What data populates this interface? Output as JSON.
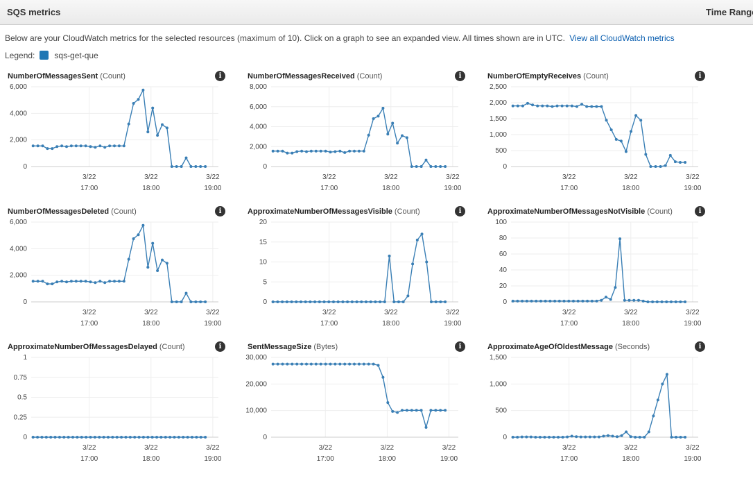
{
  "header": {
    "title": "SQS metrics",
    "time_range_label": "Time Range"
  },
  "intro": {
    "text": "Below are your CloudWatch metrics for the selected resources (maximum of 10). Click on a graph to see an expanded view. All times shown are in UTC.",
    "link": "View all CloudWatch metrics"
  },
  "legend": {
    "label": "Legend:",
    "series": "sqs-get-que",
    "color": "#1f77b4"
  },
  "info_icon": "info-icon",
  "line_color": "#3a7fb5",
  "charts": [
    {
      "metric": "NumberOfMessagesSent",
      "unit": "(Count)",
      "chart_data": {
        "type": "line",
        "series_name": "sqs-get-que",
        "ylim": [
          0,
          6000
        ],
        "yticks": [
          "6,000",
          "4,000",
          "2,000",
          "0"
        ],
        "ytick_values": [
          6000,
          4000,
          2000,
          0
        ],
        "xticks": [
          [
            "3/22",
            "17:00"
          ],
          [
            "3/22",
            "18:00"
          ],
          [
            "3/22",
            "19:00"
          ]
        ],
        "xtick_fractions": [
          0.31,
          0.64,
          0.97
        ],
        "xrange": [
          0,
          1
        ],
        "values": [
          1550,
          1550,
          1550,
          1350,
          1350,
          1500,
          1550,
          1500,
          1550,
          1550,
          1550,
          1550,
          1500,
          1450,
          1550,
          1450,
          1550,
          1550,
          1550,
          1550,
          3200,
          4750,
          5050,
          5750,
          2600,
          4400,
          2350,
          3150,
          2900,
          0,
          0,
          0,
          650,
          0,
          0,
          0,
          0
        ]
      }
    },
    {
      "metric": "NumberOfMessagesReceived",
      "unit": "(Count)",
      "chart_data": {
        "type": "line",
        "series_name": "sqs-get-que",
        "ylim": [
          0,
          8000
        ],
        "yticks": [
          "8,000",
          "6,000",
          "4,000",
          "2,000",
          "0"
        ],
        "ytick_values": [
          8000,
          6000,
          4000,
          2000,
          0
        ],
        "xticks": [
          [
            "3/22",
            "17:00"
          ],
          [
            "3/22",
            "18:00"
          ],
          [
            "3/22",
            "19:00"
          ]
        ],
        "xtick_fractions": [
          0.31,
          0.64,
          0.97
        ],
        "xrange": [
          0,
          1
        ],
        "values": [
          1550,
          1550,
          1550,
          1350,
          1350,
          1500,
          1550,
          1500,
          1550,
          1550,
          1550,
          1550,
          1450,
          1500,
          1550,
          1400,
          1550,
          1550,
          1550,
          1550,
          3150,
          4800,
          5050,
          5850,
          3250,
          4350,
          2350,
          3100,
          2900,
          0,
          0,
          0,
          650,
          0,
          0,
          0,
          0
        ]
      }
    },
    {
      "metric": "NumberOfEmptyReceives",
      "unit": "(Count)",
      "chart_data": {
        "type": "line",
        "series_name": "sqs-get-que",
        "ylim": [
          0,
          2500
        ],
        "yticks": [
          "2,500",
          "2,000",
          "1,500",
          "1,000",
          "500",
          "0"
        ],
        "ytick_values": [
          2500,
          2000,
          1500,
          1000,
          500,
          0
        ],
        "xticks": [
          [
            "3/22",
            "17:00"
          ],
          [
            "3/22",
            "18:00"
          ],
          [
            "3/22",
            "19:00"
          ]
        ],
        "xtick_fractions": [
          0.31,
          0.64,
          0.97
        ],
        "xrange": [
          0,
          1
        ],
        "values": [
          1900,
          1900,
          1900,
          1980,
          1930,
          1900,
          1900,
          1900,
          1880,
          1900,
          1900,
          1900,
          1900,
          1880,
          1950,
          1880,
          1880,
          1880,
          1880,
          1450,
          1150,
          850,
          800,
          470,
          1100,
          1600,
          1450,
          380,
          0,
          0,
          0,
          30,
          350,
          150,
          130,
          130
        ]
      }
    },
    {
      "metric": "NumberOfMessagesDeleted",
      "unit": "(Count)",
      "chart_data": {
        "type": "line",
        "series_name": "sqs-get-que",
        "ylim": [
          0,
          6000
        ],
        "yticks": [
          "6,000",
          "4,000",
          "2,000",
          "0"
        ],
        "ytick_values": [
          6000,
          4000,
          2000,
          0
        ],
        "xticks": [
          [
            "3/22",
            "17:00"
          ],
          [
            "3/22",
            "18:00"
          ],
          [
            "3/22",
            "19:00"
          ]
        ],
        "xtick_fractions": [
          0.31,
          0.64,
          0.97
        ],
        "xrange": [
          0,
          1
        ],
        "values": [
          1550,
          1550,
          1550,
          1350,
          1350,
          1500,
          1550,
          1500,
          1550,
          1550,
          1550,
          1550,
          1500,
          1450,
          1550,
          1450,
          1550,
          1550,
          1550,
          1550,
          3200,
          4750,
          5050,
          5750,
          2600,
          4400,
          2350,
          3150,
          2900,
          0,
          0,
          0,
          650,
          0,
          0,
          0,
          0
        ]
      }
    },
    {
      "metric": "ApproximateNumberOfMessagesVisible",
      "unit": "(Count)",
      "chart_data": {
        "type": "line",
        "series_name": "sqs-get-que",
        "ylim": [
          0,
          20
        ],
        "yticks": [
          "20",
          "15",
          "10",
          "5",
          "0"
        ],
        "ytick_values": [
          20,
          15,
          10,
          5,
          0
        ],
        "xticks": [
          [
            "3/22",
            "17:00"
          ],
          [
            "3/22",
            "18:00"
          ],
          [
            "3/22",
            "19:00"
          ]
        ],
        "xtick_fractions": [
          0.31,
          0.64,
          0.97
        ],
        "xrange": [
          0,
          1
        ],
        "values": [
          0,
          0,
          0,
          0,
          0,
          0,
          0,
          0,
          0,
          0,
          0,
          0,
          0,
          0,
          0,
          0,
          0,
          0,
          0,
          0,
          0,
          0,
          0,
          0,
          0,
          11.5,
          0,
          0,
          0,
          1.5,
          9.5,
          15.5,
          17,
          10,
          0,
          0,
          0,
          0
        ]
      }
    },
    {
      "metric": "ApproximateNumberOfMessagesNotVisible",
      "unit": "(Count)",
      "chart_data": {
        "type": "line",
        "series_name": "sqs-get-que",
        "ylim": [
          0,
          100
        ],
        "yticks": [
          "100",
          "80",
          "60",
          "40",
          "20",
          "0"
        ],
        "ytick_values": [
          100,
          80,
          60,
          40,
          20,
          0
        ],
        "xticks": [
          [
            "3/22",
            "17:00"
          ],
          [
            "3/22",
            "18:00"
          ],
          [
            "3/22",
            "19:00"
          ]
        ],
        "xtick_fractions": [
          0.31,
          0.64,
          0.97
        ],
        "xrange": [
          0,
          1
        ],
        "values": [
          1,
          1,
          1,
          1,
          1,
          1,
          1,
          1,
          1,
          1,
          1,
          1,
          1,
          1,
          1,
          1,
          1,
          1,
          1,
          2,
          6,
          3,
          18,
          79,
          2,
          2,
          2,
          2,
          1,
          0,
          0,
          0,
          0,
          0,
          0,
          0,
          0,
          0
        ]
      }
    },
    {
      "metric": "ApproximateNumberOfMessagesDelayed",
      "unit": "(Count)",
      "chart_data": {
        "type": "line",
        "series_name": "sqs-get-que",
        "ylim": [
          0,
          1
        ],
        "yticks": [
          "1",
          "0.75",
          "0.5",
          "0.25",
          "0"
        ],
        "ytick_values": [
          1,
          0.75,
          0.5,
          0.25,
          0
        ],
        "xticks": [
          [
            "3/22",
            "17:00"
          ],
          [
            "3/22",
            "18:00"
          ],
          [
            "3/22",
            "19:00"
          ]
        ],
        "xtick_fractions": [
          0.31,
          0.64,
          0.97
        ],
        "xrange": [
          0,
          1
        ],
        "values": [
          0,
          0,
          0,
          0,
          0,
          0,
          0,
          0,
          0,
          0,
          0,
          0,
          0,
          0,
          0,
          0,
          0,
          0,
          0,
          0,
          0,
          0,
          0,
          0,
          0,
          0,
          0,
          0,
          0,
          0,
          0,
          0,
          0,
          0,
          0,
          0,
          0,
          0,
          0,
          0
        ]
      }
    },
    {
      "metric": "SentMessageSize",
      "unit": "(Bytes)",
      "chart_data": {
        "type": "line",
        "series_name": "sqs-get-que",
        "ylim": [
          0,
          30000
        ],
        "yticks": [
          "30,000",
          "20,000",
          "10,000",
          "0"
        ],
        "ytick_values": [
          30000,
          20000,
          10000,
          0
        ],
        "xticks": [
          [
            "3/22",
            "17:00"
          ],
          [
            "3/22",
            "18:00"
          ],
          [
            "3/22",
            "19:00"
          ]
        ],
        "xtick_fractions": [
          0.29,
          0.62,
          0.95
        ],
        "xrange": [
          0,
          1
        ],
        "values": [
          27500,
          27500,
          27500,
          27500,
          27500,
          27500,
          27500,
          27500,
          27500,
          27500,
          27500,
          27500,
          27500,
          27500,
          27500,
          27500,
          27500,
          27500,
          27500,
          27500,
          27500,
          27500,
          27000,
          22500,
          13000,
          9700,
          9300,
          10100,
          10100,
          10100,
          10100,
          10100,
          3700,
          10100,
          10100,
          10100,
          10100
        ]
      }
    },
    {
      "metric": "ApproximateAgeOfOldestMessage",
      "unit": "(Seconds)",
      "chart_data": {
        "type": "line",
        "series_name": "sqs-get-que",
        "ylim": [
          0,
          1500
        ],
        "yticks": [
          "1,500",
          "1,000",
          "500",
          "0"
        ],
        "ytick_values": [
          1500,
          1000,
          500,
          0
        ],
        "xticks": [
          [
            "3/22",
            "17:00"
          ],
          [
            "3/22",
            "18:00"
          ],
          [
            "3/22",
            "19:00"
          ]
        ],
        "xtick_fractions": [
          0.31,
          0.64,
          0.97
        ],
        "xrange": [
          0,
          1
        ],
        "values": [
          0,
          0,
          5,
          5,
          5,
          0,
          0,
          0,
          0,
          0,
          0,
          0,
          5,
          20,
          10,
          5,
          5,
          5,
          5,
          5,
          20,
          30,
          20,
          10,
          30,
          100,
          10,
          0,
          0,
          0,
          100,
          400,
          700,
          1000,
          1180,
          0,
          0,
          0,
          0
        ]
      }
    }
  ]
}
